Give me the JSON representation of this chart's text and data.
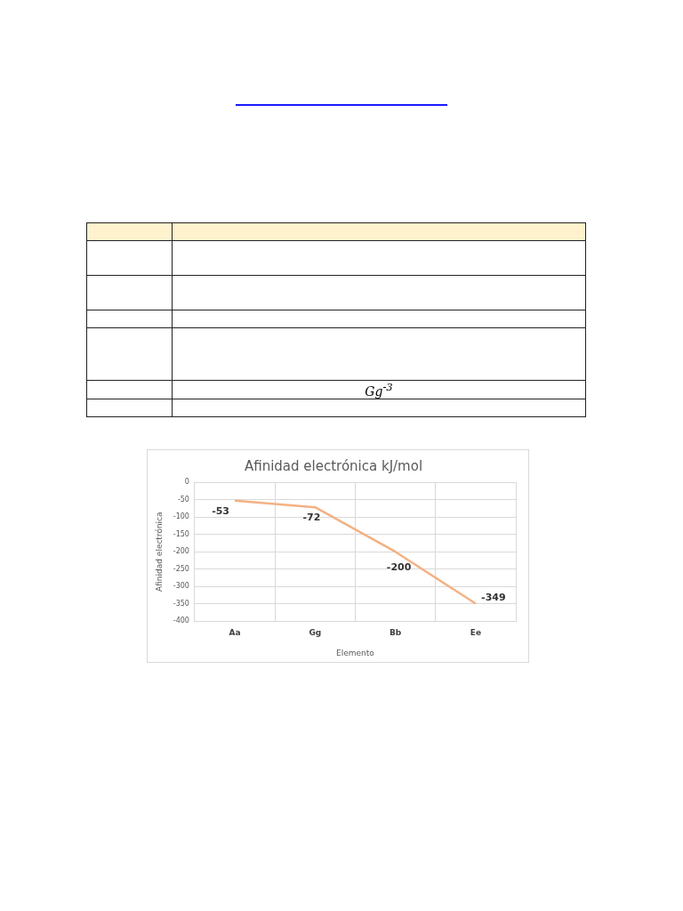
{
  "chart_data": [
    {
      "type": "other",
      "annotations": [
        "Gg$^{-3}$"
      ]
    },
    {
      "type": "line",
      "title": "Afinidad electrónica kJ/mol",
      "xlabel": "Elemento",
      "ylabel": "Afinidad electrónica",
      "categories": [
        "Aa",
        "Gg",
        "Bb",
        "Ee"
      ],
      "series": [
        {
          "color": "#f4b183",
          "values": [
            -53,
            -72,
            -200,
            -349
          ]
        }
      ],
      "ylim": [
        -400,
        0
      ],
      "yticks": [
        0,
        -50,
        -100,
        -150,
        -200,
        -250,
        -300,
        -350,
        -400
      ],
      "grid": true,
      "legend": false,
      "marker": "none",
      "line_style": "solid",
      "data_labels": true
    }
  ]
}
